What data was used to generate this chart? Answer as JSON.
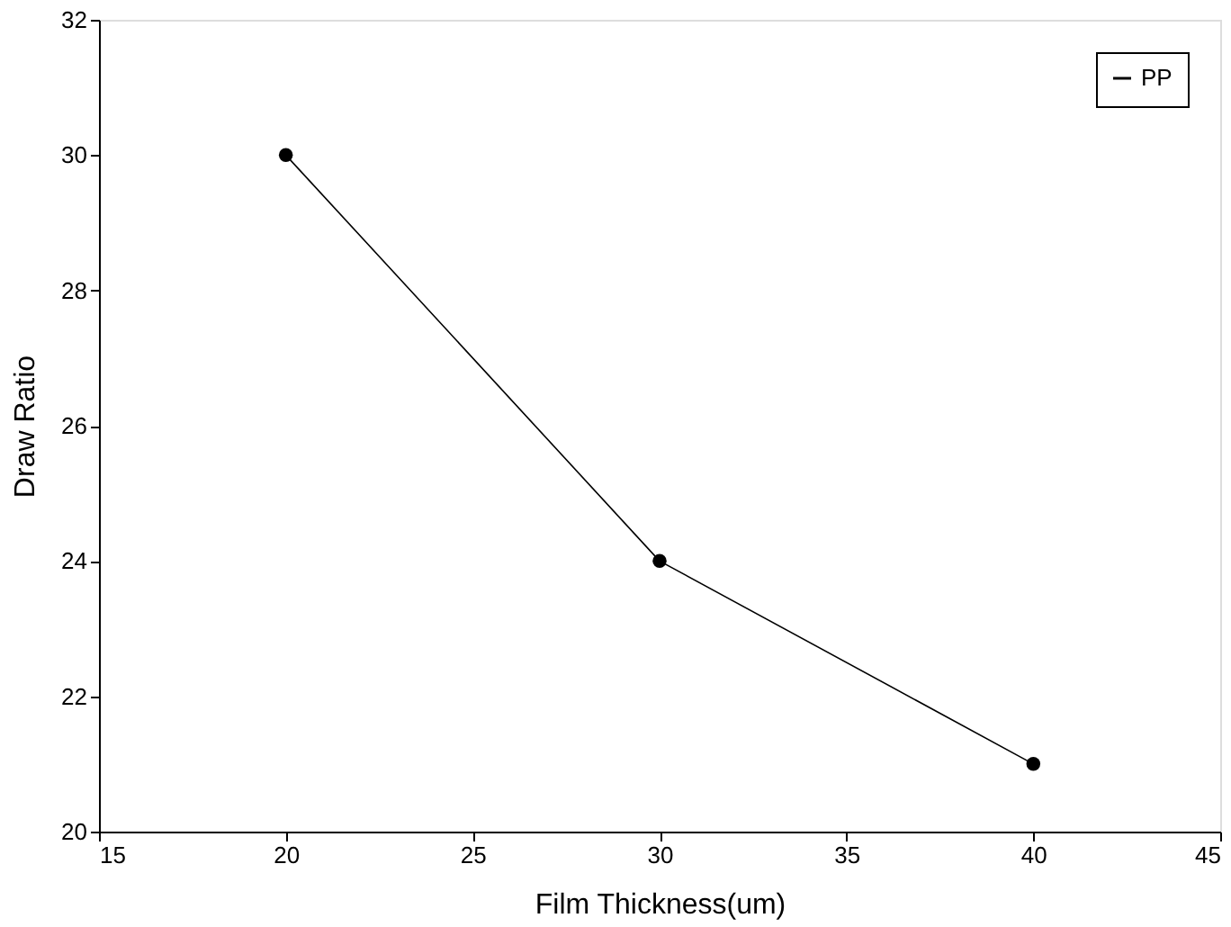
{
  "chart_data": {
    "type": "line",
    "xlabel": "Film Thickness(um)",
    "ylabel": "Draw Ratio",
    "x": [
      20,
      30,
      40
    ],
    "series": [
      {
        "name": "PP",
        "color": "#000000",
        "values": [
          30,
          24,
          21
        ]
      }
    ],
    "xlim": [
      15,
      45
    ],
    "xticks": [
      15,
      20,
      25,
      30,
      35,
      40,
      45
    ],
    "ylim": [
      20,
      32
    ],
    "yticks": [
      20,
      22,
      24,
      26,
      28,
      30,
      32
    ],
    "grid": false,
    "legend": "top right",
    "marker": "circle",
    "line_style": "solid"
  }
}
